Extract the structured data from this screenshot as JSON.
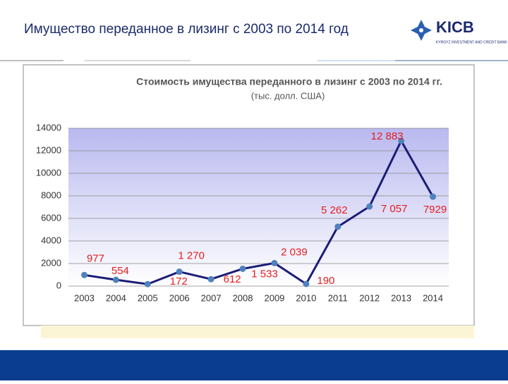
{
  "header": {
    "title": "Имущество переданное в лизинг с 2003 по 2014 год",
    "logo": "KICB",
    "logo_sub": "KYRGYZ INVESTMENT AND CREDIT BANK"
  },
  "chart_data": {
    "type": "line",
    "title": "Стоимость имущества переданного в лизинг с 2003 по 2014 гг.",
    "subtitle": "(тыс. долл. США)",
    "categories": [
      "2003",
      "2004",
      "2005",
      "2006",
      "2007",
      "2008",
      "2009",
      "2010",
      "2011",
      "2012",
      "2013",
      "2014"
    ],
    "values": [
      977,
      554,
      172,
      1270,
      612,
      1533,
      2039,
      190,
      5262,
      7057,
      12883,
      7929
    ],
    "value_labels": [
      "977",
      "554",
      "172",
      "1 270",
      "612",
      "1 533",
      "2 039",
      "190",
      "5 262",
      "7 057",
      "12 883",
      "7929"
    ],
    "color": "#1c1c78",
    "marker_color": "#4f81bd",
    "label_color": "#e41e1e",
    "ylim": [
      0,
      14000
    ],
    "yticks": [
      0,
      2000,
      4000,
      6000,
      8000,
      10000,
      12000,
      14000
    ],
    "grid": true
  }
}
